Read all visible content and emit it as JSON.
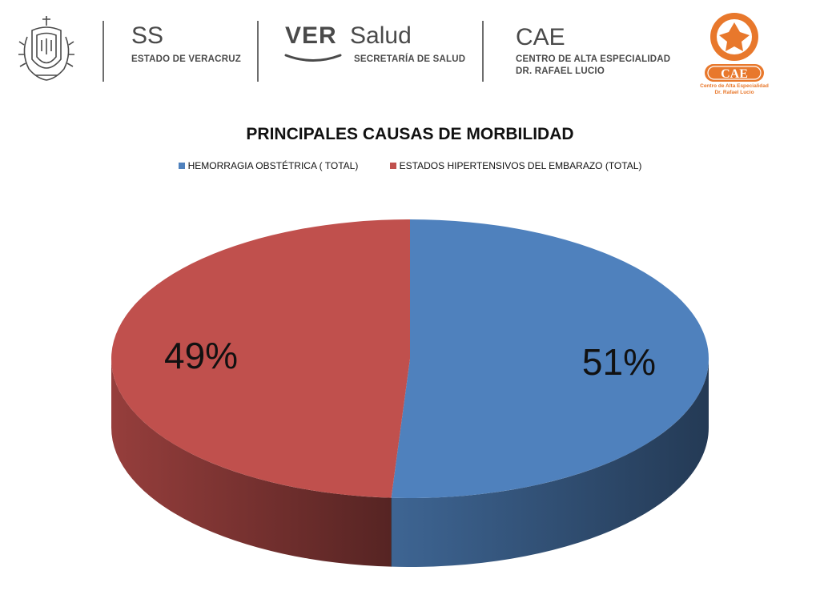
{
  "header": {
    "ss": {
      "title": "SS",
      "subtitle": "ESTADO DE VERACRUZ"
    },
    "ver": {
      "bold": "VER",
      "light": "Salud",
      "subtitle": "SECRETARÍA DE SALUD"
    },
    "cae": {
      "title": "CAE",
      "line1": "CENTRO DE ALTA ESPECIALIDAD",
      "line2": "DR. RAFAEL LUCIO"
    },
    "cae_logo": {
      "badge": "CAE",
      "line1": "Centro de Alta Especialidad",
      "line2": "Dr. Rafael Lucio",
      "color": "#e8782c"
    },
    "crest_icon": "veracruz-coat-of-arms-icon"
  },
  "chart_data": {
    "type": "pie",
    "title": "PRINCIPALES CAUSAS DE MORBILIDAD",
    "legend_position": "top",
    "series": [
      {
        "name": "HEMORRAGIA OBSTÉTRICA ( TOTAL)",
        "value": 51,
        "label": "51%",
        "color": "#4f81bd"
      },
      {
        "name": "ESTADOS HIPERTENSIVOS DEL EMBARAZO (TOTAL)",
        "value": 49,
        "label": "49%",
        "color": "#c0504d"
      }
    ]
  }
}
